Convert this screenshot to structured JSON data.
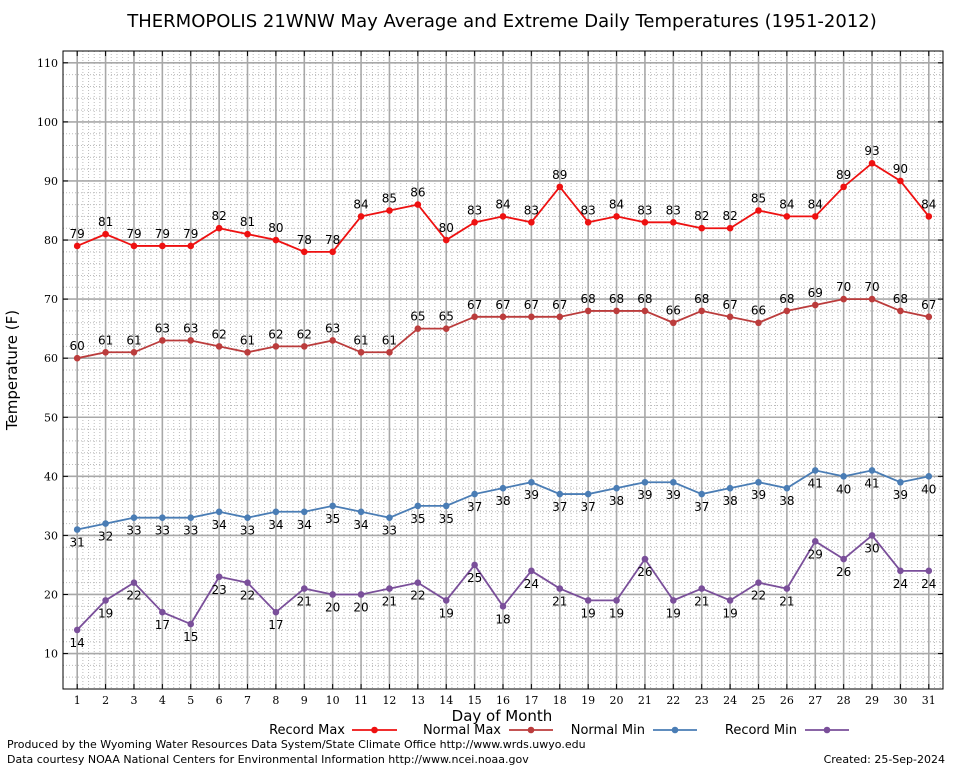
{
  "chart_data": {
    "type": "line",
    "title": "THERMOPOLIS 21WNW May Average and Extreme Daily Temperatures (1951-2012)",
    "xlabel": "Day of Month",
    "ylabel": "Temperature (F)",
    "x": [
      1,
      2,
      3,
      4,
      5,
      6,
      7,
      8,
      9,
      10,
      11,
      12,
      13,
      14,
      15,
      16,
      17,
      18,
      19,
      20,
      21,
      22,
      23,
      24,
      25,
      26,
      27,
      28,
      29,
      30,
      31
    ],
    "xlim": [
      0.5,
      31.5
    ],
    "ylim": [
      4,
      112
    ],
    "yticks": [
      10,
      20,
      30,
      40,
      50,
      60,
      70,
      80,
      90,
      100,
      110
    ],
    "grid": true,
    "legend_placement": "bottom",
    "series": [
      {
        "name": "Record Max",
        "color": "#ee1111",
        "label_position": "above",
        "values": [
          79,
          81,
          79,
          79,
          79,
          82,
          81,
          80,
          78,
          78,
          84,
          85,
          86,
          80,
          83,
          84,
          83,
          89,
          83,
          84,
          83,
          83,
          82,
          82,
          85,
          84,
          84,
          89,
          93,
          90,
          84
        ]
      },
      {
        "name": "Normal Max",
        "color": "#bb3c3c",
        "label_position": "above",
        "values": [
          60,
          61,
          61,
          63,
          63,
          62,
          61,
          62,
          62,
          63,
          61,
          61,
          65,
          65,
          67,
          67,
          67,
          67,
          68,
          68,
          68,
          66,
          68,
          67,
          66,
          68,
          69,
          70,
          70,
          68,
          67
        ]
      },
      {
        "name": "Normal Min",
        "color": "#4a7db5",
        "label_position": "below",
        "values": [
          31,
          32,
          33,
          33,
          33,
          34,
          33,
          34,
          34,
          35,
          34,
          33,
          35,
          35,
          37,
          38,
          39,
          37,
          37,
          38,
          39,
          39,
          37,
          38,
          39,
          38,
          41,
          40,
          41,
          39,
          40
        ]
      },
      {
        "name": "Record Min",
        "color": "#7a4f9a",
        "label_position": "below",
        "values": [
          14,
          19,
          22,
          17,
          15,
          23,
          22,
          17,
          21,
          20,
          20,
          21,
          22,
          19,
          25,
          18,
          24,
          21,
          19,
          19,
          26,
          19,
          21,
          19,
          22,
          21,
          29,
          26,
          30,
          24,
          24
        ]
      }
    ]
  },
  "footer": {
    "produced_by": "Produced by the Wyoming Water Resources Data System/State Climate Office http://www.wrds.uwyo.edu",
    "courtesy": "Data courtesy NOAA National Centers for Environmental Information http://www.ncei.noaa.gov",
    "created": "Created:  25-Sep-2024"
  }
}
